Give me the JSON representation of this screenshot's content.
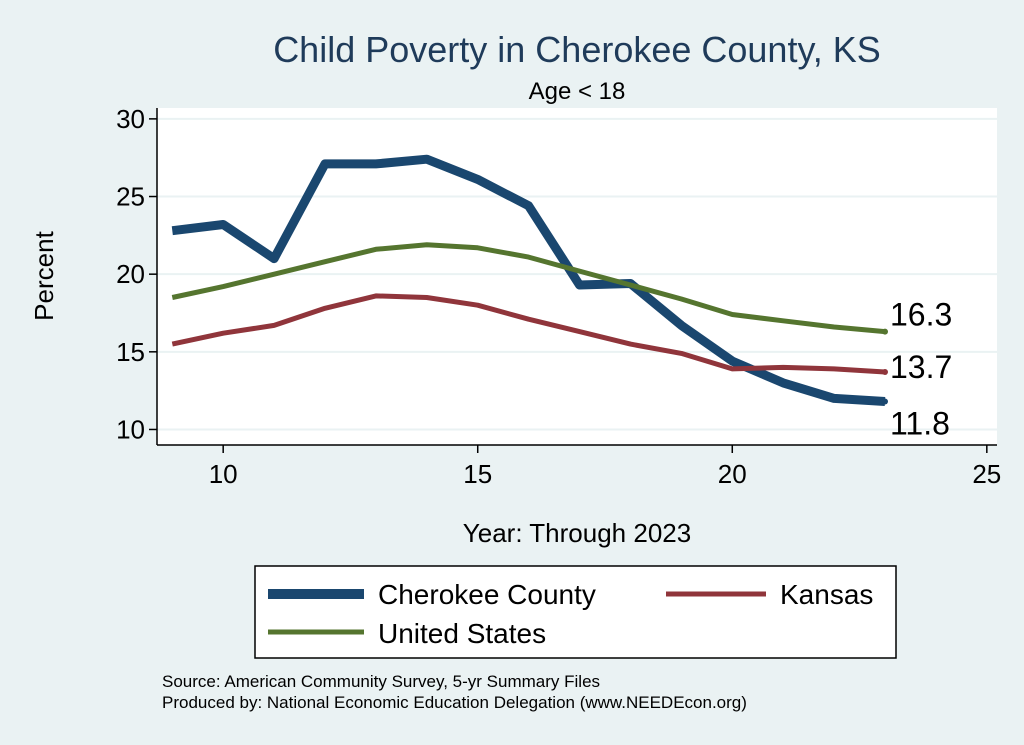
{
  "chart_data": {
    "type": "line",
    "title": "Child Poverty in Cherokee County, KS",
    "subtitle": "Age < 18",
    "xlabel": "Year: Through 2023",
    "ylabel": "Percent",
    "xlim": [
      8.7,
      25.2
    ],
    "ylim": [
      9.0,
      30.7
    ],
    "xticks": [
      10,
      15,
      20,
      25
    ],
    "yticks": [
      10,
      15,
      20,
      25,
      30
    ],
    "x": [
      9,
      10,
      11,
      12,
      13,
      14,
      15,
      16,
      17,
      18,
      19,
      20,
      21,
      22,
      23
    ],
    "series": [
      {
        "name": "Cherokee County",
        "color": "#1a476f",
        "values": [
          22.8,
          23.2,
          21.0,
          27.1,
          27.1,
          27.4,
          26.1,
          24.4,
          19.3,
          19.4,
          16.7,
          14.4,
          13.0,
          12.0,
          11.8
        ],
        "end_label": "11.8"
      },
      {
        "name": "Kansas",
        "color": "#90353b",
        "values": [
          15.5,
          16.2,
          16.7,
          17.8,
          18.6,
          18.5,
          18.0,
          17.1,
          16.3,
          15.5,
          14.9,
          13.9,
          14.0,
          13.9,
          13.7
        ],
        "end_label": "13.7"
      },
      {
        "name": "United States",
        "color": "#55752f",
        "values": [
          18.5,
          19.2,
          20.0,
          20.8,
          21.6,
          21.9,
          21.7,
          21.1,
          20.2,
          19.3,
          18.4,
          17.4,
          17.0,
          16.6,
          16.3
        ],
        "end_label": "16.3"
      }
    ],
    "legend": {
      "placement": "bottom",
      "entries": [
        "Cherokee County",
        "Kansas",
        "United States"
      ]
    },
    "notes": [
      "Source: American Community Survey, 5-yr Summary Files",
      "Produced by: National Economic Education Delegation (www.NEEDEcon.org)"
    ],
    "grid": true
  },
  "colors": {
    "background": "#eaf2f3",
    "plot_background": "#ffffff",
    "grid": "#eaf2f3",
    "title": "#1f3b5a"
  }
}
